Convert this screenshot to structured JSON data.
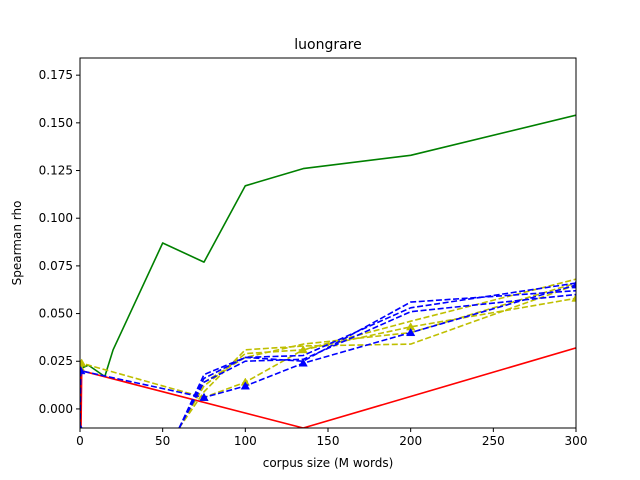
{
  "chart_data": {
    "type": "line",
    "title": "luongrare",
    "xlabel": "corpus size (M words)",
    "ylabel": "Spearman rho",
    "xlim": [
      0,
      300
    ],
    "ylim": [
      -0.01,
      0.184
    ],
    "xticks": [
      {
        "value": 0,
        "label": "0"
      },
      {
        "value": 50,
        "label": "50"
      },
      {
        "value": 100,
        "label": "100"
      },
      {
        "value": 150,
        "label": "150"
      },
      {
        "value": 200,
        "label": "200"
      },
      {
        "value": 250,
        "label": "250"
      },
      {
        "value": 300,
        "label": "300"
      }
    ],
    "yticks": [
      {
        "value": 0.0,
        "label": "0.000"
      },
      {
        "value": 0.025,
        "label": "0.025"
      },
      {
        "value": 0.05,
        "label": "0.050"
      },
      {
        "value": 0.075,
        "label": "0.075"
      },
      {
        "value": 0.1,
        "label": "0.100"
      },
      {
        "value": 0.125,
        "label": "0.125"
      },
      {
        "value": 0.15,
        "label": "0.150"
      },
      {
        "value": 0.175,
        "label": "0.175"
      }
    ],
    "grid": false,
    "legend": "none",
    "series": [
      {
        "color": "#008000",
        "dash": "solid",
        "marker": "none",
        "x": [
          0,
          5,
          15,
          20,
          50,
          75,
          100,
          135,
          200,
          300
        ],
        "y": [
          0.021,
          0.023,
          0.017,
          0.031,
          0.087,
          0.077,
          0.117,
          0.126,
          0.133,
          0.154
        ]
      },
      {
        "color": "#ff0000",
        "dash": "solid",
        "marker": "none",
        "x": [
          0,
          0.5,
          1,
          135,
          300
        ],
        "y": [
          0.022,
          -0.02,
          0.02,
          -0.01,
          0.032
        ]
      },
      {
        "color": "#bfbf00",
        "dash": "dashed",
        "marker": "triangle",
        "x": [
          0,
          1,
          75,
          100,
          135,
          200,
          300
        ],
        "y": [
          0.022,
          0.024,
          0.006,
          0.014,
          0.031,
          0.043,
          0.058
        ]
      },
      {
        "color": "#bfbf00",
        "dash": "dashed",
        "marker": "none",
        "x": [
          60,
          75,
          100,
          135,
          200,
          300
        ],
        "y": [
          -0.01,
          0.009,
          0.031,
          0.033,
          0.034,
          0.065
        ]
      },
      {
        "color": "#bfbf00",
        "dash": "dashed",
        "marker": "none",
        "x": [
          60,
          75,
          100,
          135,
          200,
          300
        ],
        "y": [
          -0.01,
          0.012,
          0.029,
          0.031,
          0.046,
          0.068
        ]
      },
      {
        "color": "#bfbf00",
        "dash": "dashed",
        "marker": "none",
        "x": [
          60,
          75,
          100,
          135,
          200,
          300
        ],
        "y": [
          -0.01,
          0.014,
          0.027,
          0.034,
          0.04,
          0.066
        ]
      },
      {
        "color": "#0000ff",
        "dash": "dashed",
        "marker": "triangle",
        "x": [
          0,
          0.5,
          75,
          100,
          135,
          200,
          300
        ],
        "y": [
          -0.01,
          0.02,
          0.006,
          0.012,
          0.024,
          0.04,
          0.065
        ]
      },
      {
        "color": "#0000ff",
        "dash": "dashed",
        "marker": "none",
        "x": [
          60,
          75,
          100,
          135,
          200,
          300
        ],
        "y": [
          -0.01,
          0.018,
          0.027,
          0.025,
          0.056,
          0.062
        ]
      },
      {
        "color": "#0000ff",
        "dash": "dashed",
        "marker": "none",
        "x": [
          60,
          75,
          100,
          135,
          200,
          300
        ],
        "y": [
          -0.01,
          0.016,
          0.027,
          0.028,
          0.053,
          0.066
        ]
      },
      {
        "color": "#0000ff",
        "dash": "dashed",
        "marker": "none",
        "x": [
          60,
          75,
          100,
          135,
          200,
          300
        ],
        "y": [
          -0.01,
          0.014,
          0.025,
          0.026,
          0.051,
          0.06
        ]
      }
    ]
  }
}
